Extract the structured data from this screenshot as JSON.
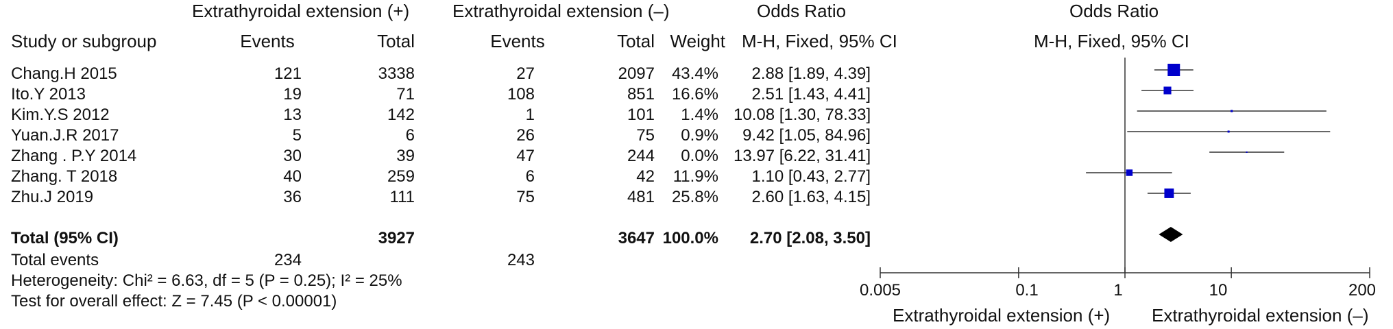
{
  "headers": {
    "group_plus": "Extrathyroidal extension (+)",
    "group_minus": "Extrathyroidal extension (–)",
    "odds_ratio": "Odds Ratio",
    "odds_ratio_plot": "Odds Ratio",
    "study": "Study or subgroup",
    "events_plus": "Events",
    "total_plus": "Total",
    "events_minus": "Events",
    "total_minus": "Total",
    "weight": "Weight",
    "method": "M-H, Fixed, 95% CI",
    "method_plot": "M-H, Fixed, 95% CI"
  },
  "studies": [
    {
      "name": "Chang.H 2015",
      "events_plus": "121",
      "total_plus": "3338",
      "events_minus": "27",
      "total_minus": "2097",
      "weight": "43.4%",
      "or_text": "2.88 [1.89, 4.39]"
    },
    {
      "name": "Ito.Y 2013",
      "events_plus": "19",
      "total_plus": "71",
      "events_minus": "108",
      "total_minus": "851",
      "weight": "16.6%",
      "or_text": "2.51 [1.43, 4.41]"
    },
    {
      "name": "Kim.Y.S 2012",
      "events_plus": "13",
      "total_plus": "142",
      "events_minus": "1",
      "total_minus": "101",
      "weight": "1.4%",
      "or_text": "10.08 [1.30, 78.33]"
    },
    {
      "name": "Yuan.J.R 2017",
      "events_plus": "5",
      "total_plus": "6",
      "events_minus": "26",
      "total_minus": "75",
      "weight": "0.9%",
      "or_text": "9.42 [1.05, 84.96]"
    },
    {
      "name": "Zhang . P.Y 2014",
      "events_plus": "30",
      "total_plus": "39",
      "events_minus": "47",
      "total_minus": "244",
      "weight": "0.0%",
      "or_text": "13.97 [6.22, 31.41]"
    },
    {
      "name": "Zhang. T 2018",
      "events_plus": "40",
      "total_plus": "259",
      "events_minus": "6",
      "total_minus": "42",
      "weight": "11.9%",
      "or_text": "1.10 [0.43, 2.77]"
    },
    {
      "name": "Zhu.J 2019",
      "events_plus": "36",
      "total_plus": "111",
      "events_minus": "75",
      "total_minus": "481",
      "weight": "25.8%",
      "or_text": "2.60 [1.63, 4.15]"
    }
  ],
  "total": {
    "label": "Total (95% CI)",
    "total_plus": "3927",
    "total_minus": "3647",
    "weight": "100.0%",
    "or_text": "2.70 [2.08, 3.50]"
  },
  "total_events": {
    "label": "Total events",
    "events_plus": "234",
    "events_minus": "243"
  },
  "heterogeneity": "Heterogeneity: Chi² = 6.63, df = 5 (P = 0.25); I² = 25%",
  "overall_effect": "Test for overall effect: Z = 7.45 (P < 0.00001)",
  "axis": {
    "ticks": [
      "0.005",
      "0.1",
      "1",
      "10",
      "200"
    ],
    "label_left": "Extrathyroidal extension (+)",
    "label_right": "Extrathyroidal extension (–)"
  },
  "colors": {
    "marker": "#0000cc",
    "diamond": "#000000",
    "line": "#333333"
  },
  "chart_data": {
    "type": "forest",
    "scale": "log",
    "xlim": [
      0.005,
      200
    ],
    "ticks": [
      0.005,
      0.1,
      1,
      10,
      200
    ],
    "reference_line": 1,
    "studies": [
      {
        "name": "Chang.H 2015",
        "or": 2.88,
        "lower": 1.89,
        "upper": 4.39,
        "weight": 43.4
      },
      {
        "name": "Ito.Y 2013",
        "or": 2.51,
        "lower": 1.43,
        "upper": 4.41,
        "weight": 16.6
      },
      {
        "name": "Kim.Y.S 2012",
        "or": 10.08,
        "lower": 1.3,
        "upper": 78.33,
        "weight": 1.4
      },
      {
        "name": "Yuan.J.R 2017",
        "or": 9.42,
        "lower": 1.05,
        "upper": 84.96,
        "weight": 0.9
      },
      {
        "name": "Zhang . P.Y 2014",
        "or": 13.97,
        "lower": 6.22,
        "upper": 31.41,
        "weight": 0.0
      },
      {
        "name": "Zhang. T 2018",
        "or": 1.1,
        "lower": 0.43,
        "upper": 2.77,
        "weight": 11.9
      },
      {
        "name": "Zhu.J 2019",
        "or": 2.6,
        "lower": 1.63,
        "upper": 4.15,
        "weight": 25.8
      }
    ],
    "total": {
      "or": 2.7,
      "lower": 2.08,
      "upper": 3.5
    }
  }
}
